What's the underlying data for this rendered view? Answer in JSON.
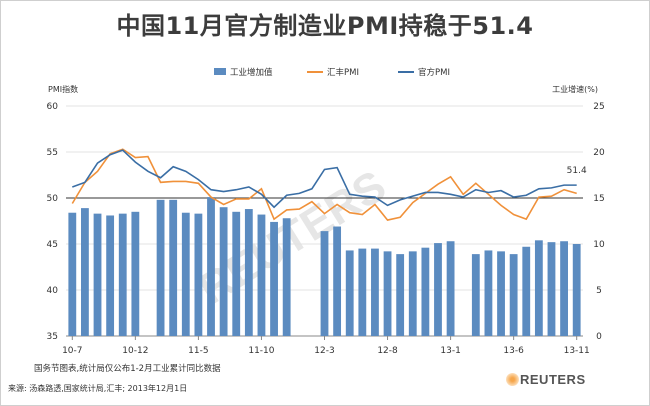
{
  "page": {
    "title": "中国11月官方制造业PMI持稳于51.4",
    "note": "国务节图表,统计局仅公布1-2月工业累计同比数据",
    "source": "来源: 汤森路透,国家统计局,汇丰;  2013年12月1日",
    "brand": "REUTERS",
    "watermark": "REUTERS"
  },
  "chart_data": {
    "type": "bar+line",
    "ylabel_left": "PMI指数",
    "ylabel_right": "工业增速(%)",
    "ylim_left": [
      35,
      60
    ],
    "ylim_right": [
      0,
      25
    ],
    "yticks_left": [
      "60",
      "55",
      "50",
      "45",
      "40",
      "35"
    ],
    "yticks_right": [
      "25",
      "20",
      "15",
      "10",
      "5",
      "0"
    ],
    "x_tick_labels": [
      "10-7",
      "10-12",
      "11-5",
      "11-10",
      "12-3",
      "12-8",
      "13-1",
      "13-6",
      "13-11"
    ],
    "reference_line": 50,
    "end_label": "51.4",
    "x": [
      "10-7",
      "10-8",
      "10-9",
      "10-10",
      "10-11",
      "10-12",
      "11-1",
      "11-2",
      "11-3",
      "11-4",
      "11-5",
      "11-6",
      "11-7",
      "11-8",
      "11-9",
      "11-10",
      "11-11",
      "11-12",
      "12-1",
      "12-2",
      "12-3",
      "12-4",
      "12-5",
      "12-6",
      "12-7",
      "12-8",
      "12-9",
      "12-10",
      "12-11",
      "12-12",
      "13-1",
      "13-2",
      "13-3",
      "13-4",
      "13-5",
      "13-6",
      "13-7",
      "13-8",
      "13-9",
      "13-10",
      "13-11"
    ],
    "series": [
      {
        "name": "工业增加值",
        "type": "bar",
        "axis": "right",
        "color": "#5b8bc0",
        "values": [
          13.4,
          13.9,
          13.3,
          13.1,
          13.3,
          13.5,
          null,
          14.8,
          14.8,
          13.4,
          13.3,
          15.1,
          14.0,
          13.5,
          13.8,
          13.2,
          12.4,
          12.8,
          null,
          null,
          11.4,
          11.9,
          9.3,
          9.5,
          9.5,
          9.2,
          8.9,
          9.2,
          9.6,
          10.1,
          10.3,
          null,
          8.9,
          9.3,
          9.2,
          8.9,
          9.7,
          10.4,
          10.2,
          10.3,
          10.0
        ]
      },
      {
        "name": "汇丰PMI",
        "type": "line",
        "axis": "left",
        "color": "#f0913a",
        "values": [
          49.4,
          51.7,
          52.9,
          54.8,
          55.3,
          54.4,
          54.5,
          51.7,
          51.8,
          51.8,
          51.6,
          50.1,
          49.3,
          49.9,
          49.9,
          51.0,
          47.7,
          48.7,
          48.8,
          49.6,
          48.3,
          49.3,
          48.4,
          48.2,
          49.3,
          47.6,
          47.9,
          49.5,
          50.5,
          51.5,
          52.3,
          50.4,
          51.6,
          50.4,
          49.2,
          48.2,
          47.7,
          50.1,
          50.2,
          50.9,
          50.5
        ]
      },
      {
        "name": "官方PMI",
        "type": "line",
        "axis": "left",
        "color": "#3a6ea5",
        "values": [
          51.2,
          51.7,
          53.8,
          54.7,
          55.2,
          53.9,
          52.9,
          52.2,
          53.4,
          52.9,
          52.0,
          50.9,
          50.7,
          50.9,
          51.2,
          50.4,
          49.0,
          50.3,
          50.5,
          51.0,
          53.1,
          53.3,
          50.4,
          50.2,
          50.1,
          49.2,
          49.8,
          50.2,
          50.6,
          50.6,
          50.4,
          50.1,
          50.9,
          50.6,
          50.8,
          50.1,
          50.3,
          51.0,
          51.1,
          51.4,
          51.4
        ]
      }
    ]
  }
}
